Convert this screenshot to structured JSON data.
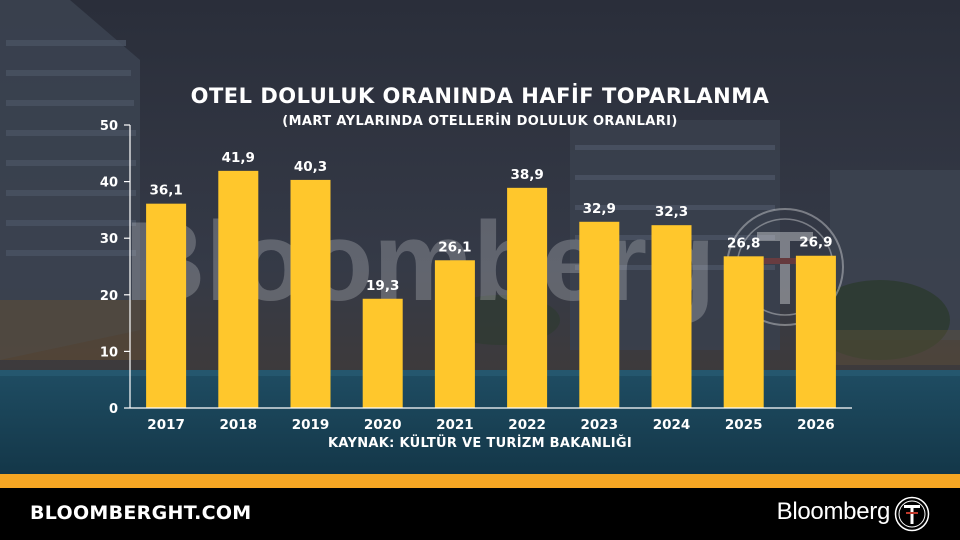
{
  "colors": {
    "bar": "#FFC72C",
    "accent": "#F6A623",
    "text": "#FFFFFF",
    "footer_bg": "#000000",
    "background": "#2b2f3a"
  },
  "header": {
    "title": "OTEL DOLULUK ORANINDA HAFİF TOPARLANMA",
    "subtitle": "(MART AYLARINDA OTELLERİN DOLULUK ORANLARI)"
  },
  "source": "KAYNAK: KÜLTÜR VE TURİZM BAKANLIĞI",
  "watermark": "Bloomberg",
  "footer": {
    "site": "BLOOMBERGHT.COM",
    "brand": "Bloomberg",
    "logo_icon": "bloomberg-ht-logo-icon"
  },
  "chart_data": {
    "type": "bar",
    "categories": [
      "2017",
      "2018",
      "2019",
      "2020",
      "2021",
      "2022",
      "2023",
      "2024",
      "2025",
      "2026"
    ],
    "values": [
      36.1,
      41.9,
      40.3,
      19.3,
      26.1,
      38.9,
      32.9,
      32.3,
      26.8,
      26.9
    ],
    "value_labels": [
      "36,1",
      "41,9",
      "40,3",
      "19,3",
      "26,1",
      "38,9",
      "32,9",
      "32,3",
      "26,8",
      "26,9"
    ],
    "title": "OTEL DOLULUK ORANINDA HAFİF TOPARLANMA",
    "subtitle": "(MART AYLARINDA OTELLERİN DOLULUK ORANLARI)",
    "xlabel": "",
    "ylabel": "",
    "ylim": [
      0,
      50
    ],
    "yticks": [
      "0",
      "10",
      "20",
      "30",
      "40",
      "50"
    ],
    "grid": false,
    "legend": "none"
  }
}
